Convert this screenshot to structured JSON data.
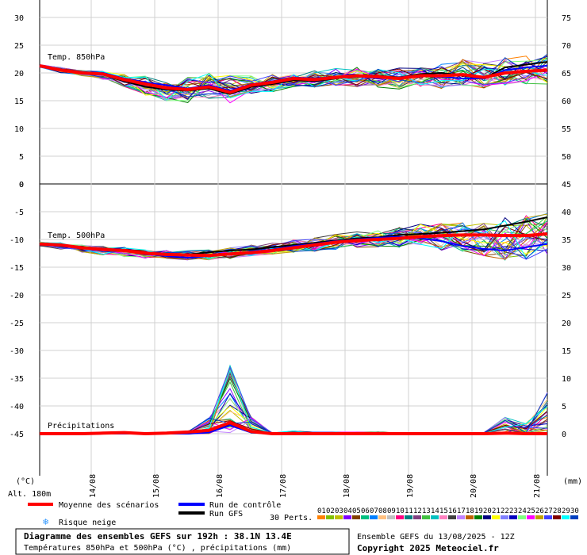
{
  "chart_data": [
    {
      "type": "line",
      "title": "Temp. 850hPa",
      "left_axis": {
        "min": 0,
        "max": 30,
        "ticks": [
          30,
          25,
          20,
          15,
          10,
          5,
          0
        ]
      },
      "right_axis": {
        "ticks": [
          75,
          70,
          65,
          60,
          55,
          50
        ]
      },
      "x_days": [
        0,
        1,
        2,
        3,
        4,
        5,
        6,
        7,
        8
      ],
      "mean_series": {
        "name": "Moyenne des scénarios",
        "color": "#ff0000",
        "values": [
          21.3,
          20.5,
          20.0,
          19.8,
          18.8,
          18.0,
          17.3,
          17.0,
          17.5,
          16.5,
          17.8,
          18.3,
          19.0,
          18.8,
          19.2,
          19.5,
          19.3,
          19.0,
          19.5,
          19.5,
          19.7,
          19.2,
          20.0,
          20.3,
          20.5
        ]
      },
      "control_series": {
        "name": "Run de contrôle",
        "color": "#0000ff",
        "values": [
          21.3,
          20.6,
          20.1,
          20.0,
          19.0,
          18.3,
          17.8,
          17.2,
          17.8,
          16.8,
          18.0,
          18.5,
          19.2,
          19.0,
          19.3,
          19.4,
          19.0,
          19.2,
          19.6,
          19.3,
          19.0,
          19.0,
          20.5,
          21.0,
          21.3
        ]
      },
      "gfs_series": {
        "name": "Run GFS",
        "color": "#000000",
        "values": [
          21.3,
          20.5,
          19.9,
          19.7,
          18.5,
          17.5,
          17.0,
          16.8,
          17.2,
          16.2,
          17.5,
          18.0,
          18.7,
          18.5,
          19.0,
          19.6,
          19.5,
          19.2,
          19.8,
          20.0,
          19.5,
          19.0,
          21.0,
          21.5,
          22.0
        ]
      },
      "spread": {
        "min": [
          21.0,
          20.0,
          19.5,
          18.8,
          17.5,
          16.0,
          15.0,
          14.6,
          15.0,
          14.6,
          16.3,
          16.6,
          17.5,
          17.4,
          17.7,
          17.5,
          17.4,
          17.0,
          17.5,
          17.2,
          17.0,
          17.0,
          17.5,
          17.6,
          18.0
        ],
        "max": [
          21.5,
          21.0,
          20.5,
          20.3,
          19.8,
          19.5,
          19.0,
          19.3,
          20.0,
          19.6,
          19.5,
          19.8,
          20.3,
          20.5,
          20.8,
          21.0,
          20.8,
          21.0,
          21.2,
          21.7,
          22.5,
          23.0,
          22.8,
          23.2,
          23.5
        ]
      }
    },
    {
      "type": "line",
      "title": "Temp. 500hPa",
      "left_axis": {
        "min": -50,
        "max": 0,
        "ticks": [
          0,
          -5,
          -10,
          -15,
          -20,
          -25,
          -30,
          -35,
          -40,
          -45
        ]
      },
      "right_axis": {
        "ticks": [
          45,
          40,
          35,
          30,
          25,
          20,
          15,
          10,
          5,
          0
        ]
      },
      "x_days": [
        0,
        1,
        2,
        3,
        4,
        5,
        6,
        7,
        8
      ],
      "mean_series": {
        "name": "Moyenne des scénarios",
        "color": "#ff0000",
        "values": [
          -10.8,
          -11.0,
          -11.5,
          -11.8,
          -12.0,
          -12.5,
          -12.7,
          -12.8,
          -12.9,
          -12.6,
          -12.4,
          -12.0,
          -11.5,
          -11.0,
          -10.5,
          -10.2,
          -10.0,
          -9.8,
          -9.5,
          -9.3,
          -9.2,
          -9.2,
          -9.3,
          -9.3,
          -9.0
        ]
      },
      "control_series": {
        "name": "Run de contrôle",
        "color": "#0000ff",
        "values": [
          -10.8,
          -11.2,
          -11.6,
          -11.8,
          -12.1,
          -12.6,
          -13.0,
          -13.3,
          -13.0,
          -12.7,
          -12.2,
          -11.8,
          -11.2,
          -10.8,
          -10.3,
          -10.0,
          -9.7,
          -9.5,
          -9.8,
          -10.3,
          -11.2,
          -11.7,
          -12.0,
          -11.4,
          -10.8
        ]
      },
      "gfs_series": {
        "name": "Run GFS",
        "color": "#000000",
        "values": [
          -10.8,
          -11.0,
          -11.4,
          -11.6,
          -12.0,
          -12.4,
          -12.6,
          -12.7,
          -12.3,
          -12.0,
          -11.8,
          -11.4,
          -11.0,
          -10.6,
          -10.2,
          -9.8,
          -9.6,
          -9.2,
          -9.0,
          -8.8,
          -8.5,
          -8.2,
          -7.5,
          -6.8,
          -6.0
        ]
      },
      "spread": {
        "min": [
          -11.2,
          -11.8,
          -12.3,
          -12.8,
          -13.1,
          -13.4,
          -13.5,
          -13.7,
          -13.7,
          -13.4,
          -13.0,
          -12.7,
          -12.4,
          -12.2,
          -11.8,
          -11.5,
          -11.4,
          -11.5,
          -11.8,
          -12.0,
          -12.6,
          -13.0,
          -13.8,
          -13.6,
          -13.0
        ]
      },
      "spread_max": [
        -10.4,
        -10.6,
        -11.0,
        -11.2,
        -11.4,
        -11.8,
        -12.0,
        -11.9,
        -11.8,
        -11.5,
        -11.0,
        -10.6,
        -10.0,
        -9.6,
        -9.0,
        -8.6,
        -8.2,
        -7.6,
        -7.2,
        -7.0,
        -6.8,
        -6.4,
        -6.0,
        -5.6,
        -5.2
      ]
    },
    {
      "type": "line",
      "title": "Précipitations",
      "unit": "(mm)",
      "right_ticks": [
        0,
        5,
        10,
        15
      ],
      "mean_series": {
        "name": "Moyenne des scénarios",
        "color": "#ff0000",
        "values": [
          0,
          0,
          0,
          0.1,
          0.2,
          0,
          0.1,
          0.3,
          0.6,
          2.0,
          0.4,
          0,
          0,
          0,
          0,
          0,
          0,
          0,
          0,
          0,
          0,
          0,
          0.1,
          0,
          0
        ]
      },
      "control_series": {
        "name": "Run de contrôle",
        "color": "#0000ff",
        "values": [
          0,
          0,
          0,
          0,
          0,
          0,
          0,
          0,
          0.2,
          1.5,
          0.2,
          0,
          0,
          0,
          0,
          0,
          0,
          0,
          0,
          0,
          0,
          0,
          0,
          0,
          0
        ]
      },
      "gfs_series": {
        "name": "Run GFS",
        "color": "#000000",
        "values": [
          0,
          0,
          0,
          0,
          0,
          0,
          0,
          0,
          0.3,
          1.8,
          0.3,
          0,
          0,
          0,
          0,
          0,
          0,
          0,
          0,
          0,
          0,
          0,
          0,
          0,
          0
        ]
      },
      "spread_max": [
        0,
        0,
        0,
        0.3,
        0.3,
        0,
        0.2,
        0.4,
        3.0,
        12.5,
        3.0,
        0.2,
        0.5,
        0.3,
        0.3,
        0.3,
        0.3,
        0.2,
        0.2,
        0.2,
        0.2,
        0.2,
        3.0,
        2.0,
        8.0
      ]
    }
  ],
  "x_axis": {
    "unit_left": "(°C)",
    "unit_right": "(mm)",
    "dates": [
      "14/08",
      "15/08",
      "16/08",
      "17/08",
      "18/08",
      "19/08",
      "20/08",
      "21/08"
    ]
  },
  "altitude": "Alt. 180m",
  "legend": {
    "mean": "Moyenne des scénarios",
    "control": "Run de contrôle",
    "gfs": "Run GFS",
    "snow": "Risque neige",
    "perts_label": "30 Perts.",
    "perts": [
      "01",
      "02",
      "03",
      "04",
      "05",
      "06",
      "07",
      "08",
      "09",
      "10",
      "11",
      "12",
      "13",
      "14",
      "15",
      "16",
      "17",
      "18",
      "19",
      "20",
      "21",
      "22",
      "23",
      "24",
      "25",
      "26",
      "27",
      "28",
      "29",
      "30"
    ],
    "pert_colors": [
      "#ff8000",
      "#80c000",
      "#c0c000",
      "#8000ff",
      "#804000",
      "#00c080",
      "#0080ff",
      "#ffc080",
      "#c0c0c0",
      "#ff0080",
      "#008080",
      "#804080",
      "#40c040",
      "#00c0c0",
      "#ff80c0",
      "#404040",
      "#c080ff",
      "#c06000",
      "#008000",
      "#000080",
      "#ffff00",
      "#8080ff",
      "#0000c0",
      "#80ff80",
      "#ff00ff",
      "#c0a000",
      "#4040ff",
      "#800000",
      "#00ffff",
      "#0040c0"
    ]
  },
  "footer": {
    "title": "Diagramme des ensembles GEFS sur 192h : 38.1N 13.4E",
    "subtitle": "Températures 850hPa et 500hPa (°C) , précipitations (mm)",
    "ensemble": "Ensemble GEFS du 13/08/2025 - 12Z",
    "copyright": "Copyright 2025 Meteociel.fr"
  }
}
